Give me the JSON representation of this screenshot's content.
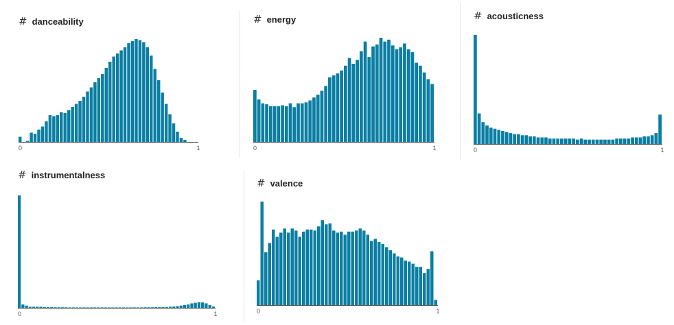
{
  "bar_color": "#0b7ea3",
  "axis_color": "#555555",
  "icon": "hash-icon",
  "chart_data": [
    {
      "type": "bar",
      "title": "danceability",
      "xlim": [
        0,
        1
      ],
      "xticks": [
        "0",
        "1"
      ],
      "values": [
        5,
        0,
        1,
        9,
        8,
        12,
        15,
        20,
        26,
        25,
        26,
        29,
        28,
        31,
        34,
        37,
        40,
        44,
        49,
        53,
        58,
        62,
        66,
        72,
        78,
        83,
        86,
        89,
        92,
        96,
        98,
        100,
        99,
        97,
        92,
        84,
        71,
        60,
        48,
        37,
        27,
        18,
        10,
        4,
        2,
        0,
        0,
        0
      ]
    },
    {
      "type": "bar",
      "title": "energy",
      "xlim": [
        0,
        1
      ],
      "xticks": [
        "0",
        "1"
      ],
      "values": [
        54,
        44,
        40,
        39,
        37,
        37,
        37,
        38,
        37,
        40,
        36,
        40,
        40,
        41,
        43,
        46,
        49,
        53,
        58,
        67,
        69,
        71,
        74,
        79,
        87,
        81,
        85,
        94,
        104,
        88,
        99,
        101,
        108,
        104,
        106,
        100,
        96,
        98,
        102,
        96,
        93,
        82,
        79,
        72,
        65,
        60
      ]
    },
    {
      "type": "bar",
      "title": "acousticness",
      "xlim": [
        0,
        1
      ],
      "xticks": [
        "0",
        "1"
      ],
      "values": [
        100,
        28,
        20,
        17,
        15,
        14,
        13,
        12,
        11,
        10,
        9,
        9,
        8,
        8,
        7,
        7,
        6,
        6,
        6,
        5,
        5,
        5,
        5,
        5,
        5,
        5,
        4,
        5,
        4,
        4,
        4,
        4,
        4,
        4,
        4,
        4,
        5,
        5,
        5,
        5,
        6,
        6,
        6,
        7,
        7,
        8,
        10,
        27
      ]
    },
    {
      "type": "bar",
      "title": "instrumentalness",
      "xlim": [
        0,
        1
      ],
      "xticks": [
        "0",
        "1"
      ],
      "values": [
        100,
        3,
        2,
        1,
        1,
        1,
        1,
        0.6,
        0.6,
        0.6,
        0.5,
        0.5,
        0.5,
        0.5,
        0.4,
        0.4,
        0.4,
        0.4,
        0.4,
        0.4,
        0.4,
        0.4,
        0.4,
        0.4,
        0.4,
        0.4,
        0.4,
        0.4,
        0.4,
        0.4,
        0.4,
        0.4,
        0.4,
        0.4,
        0.4,
        0.5,
        0.5,
        0.5,
        0.6,
        0.6,
        0.7,
        0.8,
        1,
        1.2,
        1.5,
        2,
        2.5,
        3,
        4,
        4.5,
        5,
        4.8,
        4,
        2.5,
        1.2
      ]
    },
    {
      "type": "bar",
      "title": "valence",
      "xlim": [
        0,
        1
      ],
      "xticks": [
        "0",
        "1"
      ],
      "values": [
        24,
        100,
        51,
        60,
        73,
        66,
        70,
        74,
        70,
        74,
        72,
        66,
        71,
        73,
        73,
        72,
        76,
        82,
        78,
        79,
        72,
        70,
        71,
        68,
        71,
        71,
        72,
        74,
        72,
        68,
        62,
        64,
        61,
        59,
        56,
        53,
        50,
        47,
        46,
        43,
        42,
        40,
        37,
        37,
        31,
        35,
        52,
        5
      ]
    }
  ]
}
